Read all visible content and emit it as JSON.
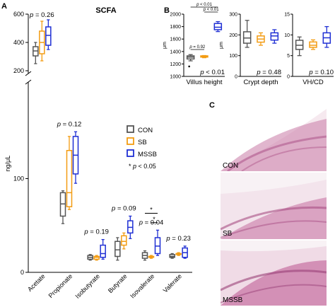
{
  "panel_labels": {
    "a": "A",
    "b": "B",
    "c": "C"
  },
  "colors": {
    "CON": "#555555",
    "SB": "#f39c12",
    "MSSB": "#1f2fd4"
  },
  "chart_data": [
    {
      "id": "A",
      "type": "box",
      "title": "SCFA",
      "ylabel": "ng/μL",
      "y_axis_break": true,
      "yticks": [
        0,
        100,
        200,
        400,
        600
      ],
      "groups": [
        "CON",
        "SB",
        "MSSB"
      ],
      "categories": [
        "Acetate",
        "Propionate",
        "Isobutyrate",
        "Butyrate",
        "Isovalerate",
        "Valerate"
      ],
      "legend": {
        "position": "right",
        "entries": [
          "CON",
          "SB",
          "MSSB"
        ],
        "note": "* p < 0.05"
      },
      "pvalues": [
        "p = 0.26",
        "p = 0.12",
        "p = 0.19",
        "p = 0.09",
        "p = 0.04",
        "p = 0.23"
      ],
      "significance_marks": [
        "*",
        "*"
      ],
      "series": [
        {
          "name": "CON",
          "boxes": [
            {
              "min": 250,
              "q1": 305,
              "median": 340,
              "q3": 370,
              "max": 400
            },
            {
              "min": 52,
              "q1": 60,
              "median": 73,
              "q3": 85,
              "max": 87
            },
            {
              "min": 13,
              "q1": 14,
              "median": 16,
              "q3": 18,
              "max": 19
            },
            {
              "min": 13,
              "q1": 17,
              "median": 24,
              "q3": 33,
              "max": 37
            },
            {
              "min": 13,
              "q1": 15,
              "median": 18,
              "q3": 21,
              "max": 23
            },
            {
              "min": 15,
              "q1": 16,
              "median": 17,
              "q3": 19,
              "max": 20
            }
          ]
        },
        {
          "name": "SB",
          "boxes": [
            {
              "min": 270,
              "q1": 320,
              "median": 400,
              "q3": 480,
              "max": 550
            },
            {
              "min": 67,
              "q1": 70,
              "median": 85,
              "q3": 130,
              "max": 145
            },
            {
              "min": 13,
              "q1": 14,
              "median": 16,
              "q3": 17,
              "max": 18
            },
            {
              "min": 25,
              "q1": 29,
              "median": 33,
              "q3": 39,
              "max": 42
            },
            {
              "min": 15,
              "q1": 16,
              "median": 17,
              "q3": 17,
              "max": 18
            },
            {
              "min": 18,
              "q1": 19,
              "median": 20,
              "q3": 20,
              "max": 21
            }
          ]
        },
        {
          "name": "MSSB",
          "boxes": [
            {
              "min": 350,
              "q1": 380,
              "median": 450,
              "q3": 510,
              "max": 560
            },
            {
              "min": 95,
              "q1": 105,
              "median": 125,
              "q3": 145,
              "max": 150
            },
            {
              "min": 14,
              "q1": 16,
              "median": 20,
              "q3": 29,
              "max": 35
            },
            {
              "min": 36,
              "q1": 42,
              "median": 48,
              "q3": 55,
              "max": 60
            },
            {
              "min": 18,
              "q1": 20,
              "median": 28,
              "q3": 37,
              "max": 45
            },
            {
              "min": 15,
              "q1": 16,
              "median": 21,
              "q3": 26,
              "max": 28
            }
          ]
        }
      ]
    },
    {
      "id": "B1",
      "type": "box",
      "xlabel": "Villus height",
      "ylabel": "μm",
      "ylim": [
        1000,
        2000
      ],
      "yticks": [
        1000,
        1200,
        1400,
        1600,
        1800,
        2000
      ],
      "pvalue": "p < 0.01",
      "brackets": [
        "p = 0.92",
        "p < 0.01",
        "p < 0.01"
      ],
      "series": [
        {
          "name": "CON",
          "box": {
            "min": 1250,
            "q1": 1280,
            "median": 1310,
            "q3": 1330,
            "max": 1350
          },
          "outlier": 1160
        },
        {
          "name": "SB",
          "box": {
            "min": 1300,
            "q1": 1310,
            "median": 1320,
            "q3": 1330,
            "max": 1335
          }
        },
        {
          "name": "MSSB",
          "box": {
            "min": 1720,
            "q1": 1750,
            "median": 1790,
            "q3": 1850,
            "max": 1880
          }
        }
      ]
    },
    {
      "id": "B2",
      "type": "box",
      "xlabel": "Crypt depth",
      "ylabel": "μm",
      "ylim": [
        0,
        300
      ],
      "yticks": [
        0,
        100,
        200,
        300
      ],
      "pvalue": "p = 0.48",
      "series": [
        {
          "name": "CON",
          "box": {
            "min": 140,
            "q1": 160,
            "median": 185,
            "q3": 215,
            "max": 270
          }
        },
        {
          "name": "SB",
          "box": {
            "min": 150,
            "q1": 165,
            "median": 180,
            "q3": 195,
            "max": 210
          }
        },
        {
          "name": "MSSB",
          "box": {
            "min": 160,
            "q1": 175,
            "median": 195,
            "q3": 210,
            "max": 225
          }
        }
      ]
    },
    {
      "id": "B3",
      "type": "box",
      "xlabel": "VH/CD",
      "ylim": [
        0,
        15
      ],
      "yticks": [
        0,
        5,
        10,
        15
      ],
      "pvalue": "p = 0.10",
      "series": [
        {
          "name": "CON",
          "box": {
            "min": 5,
            "q1": 6.5,
            "median": 7.5,
            "q3": 8.7,
            "max": 9.5
          }
        },
        {
          "name": "SB",
          "box": {
            "min": 6.5,
            "q1": 7,
            "median": 7.5,
            "q3": 8.3,
            "max": 8.8
          }
        },
        {
          "name": "MSSB",
          "box": {
            "min": 7,
            "q1": 8,
            "median": 9.3,
            "q3": 10.5,
            "max": 12
          }
        }
      ]
    }
  ],
  "histology": {
    "labels": [
      "CON",
      "SB",
      "MSSB"
    ]
  }
}
